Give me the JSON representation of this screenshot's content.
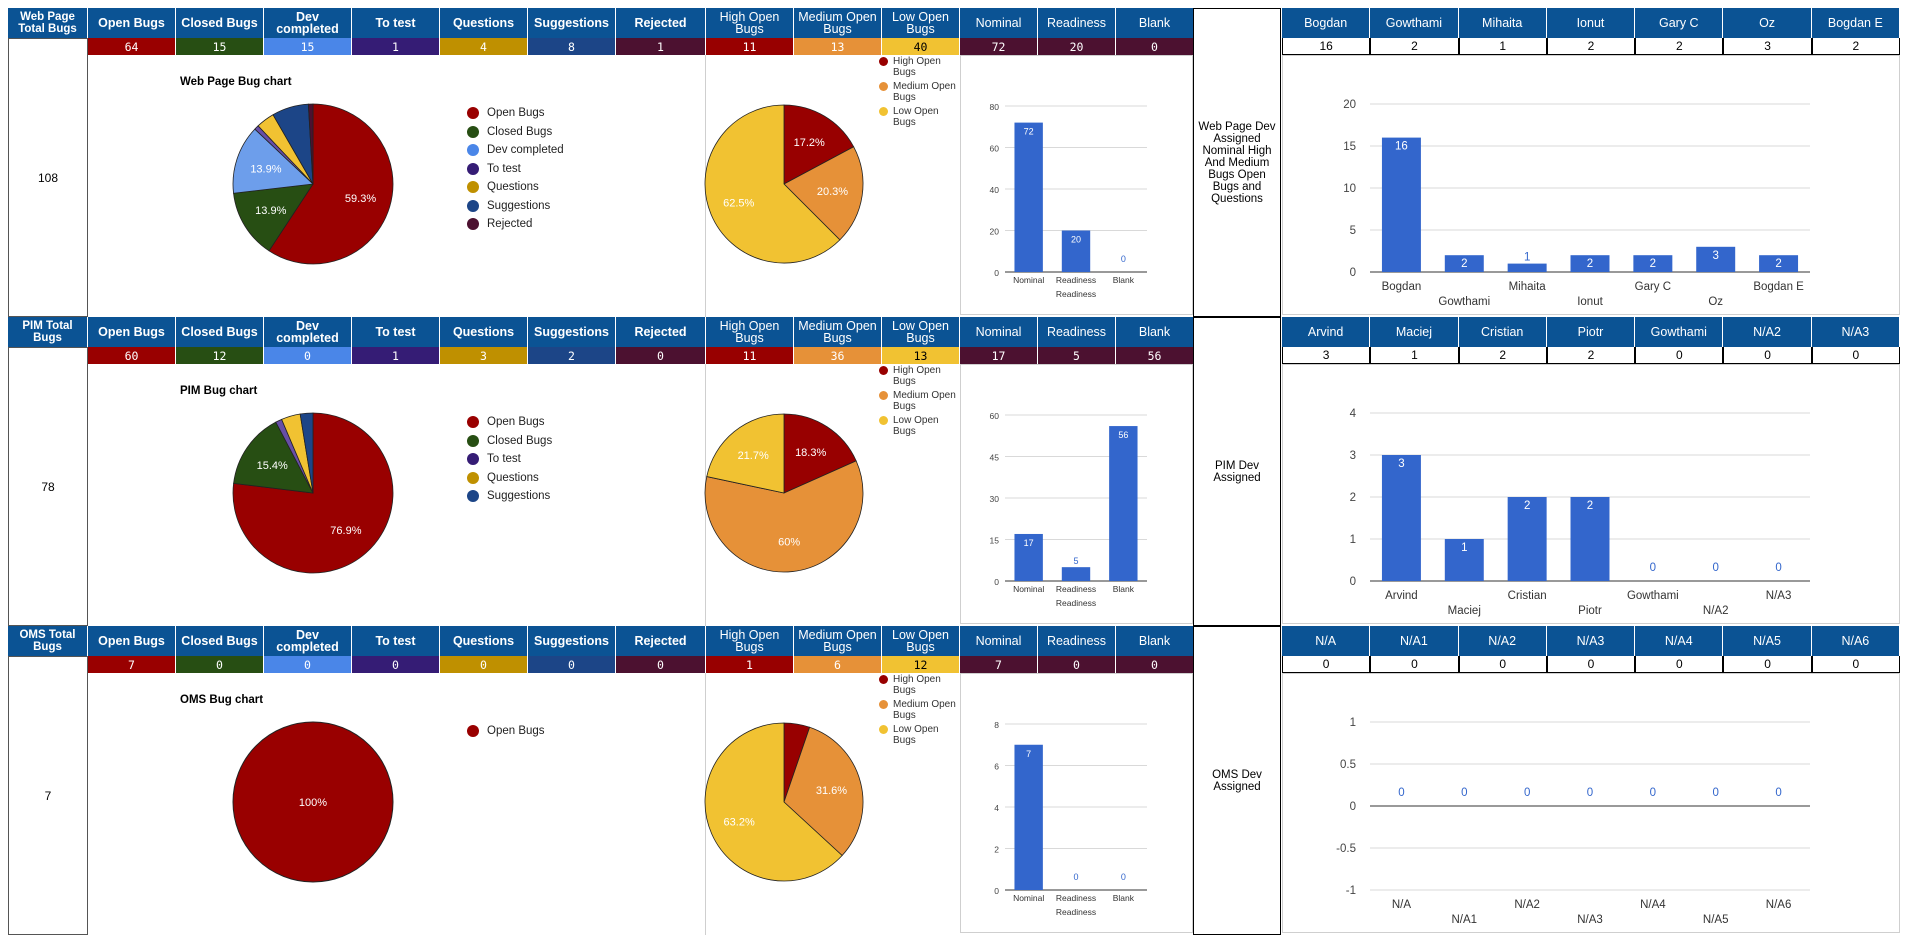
{
  "colors": {
    "header_bg": "#0b5394",
    "open": "#990000",
    "closed": "#274e13",
    "dev": "#4a86e8",
    "totest": "#351c75",
    "questions": "#bf9000",
    "suggestions": "#1c4587",
    "rejected": "#4c1130",
    "high": "#980000",
    "medium": "#e69138",
    "low": "#f1c232",
    "bar": "#3366cc"
  },
  "columns": [
    "Open Bugs",
    "Closed Bugs",
    "Dev completed",
    "To test",
    "Questions",
    "Suggestions",
    "Rejected",
    "High Open Bugs",
    "Medium Open Bugs",
    "Low Open Bugs",
    "Nominal",
    "Readiness",
    "Blank"
  ],
  "sections": [
    {
      "title": "Web Page Total Bugs",
      "total": "108",
      "values": [
        "64",
        "15",
        "15",
        "1",
        "4",
        "8",
        "1",
        "11",
        "13",
        "40",
        "72",
        "20",
        "0"
      ],
      "pie_title": "Web Page Bug chart",
      "pie_legend": [
        "Open Bugs",
        "Closed Bugs",
        "Dev completed",
        "To test",
        "Questions",
        "Suggestions",
        "Rejected"
      ],
      "pie_labels": [
        "59.3%",
        "13.9%",
        "13.9%"
      ],
      "sev_labels": [
        "17.2%",
        "20.3%",
        "62.5%"
      ],
      "sev_legend": [
        "High Open Bugs",
        "Medium Open Bugs",
        "Low Open Bugs"
      ],
      "dev_label": "Web Page Dev Assigned Nominal High And Medium Bugs Open Bugs and Questions",
      "devs": [
        "Bogdan",
        "Gowthami",
        "Mihaita",
        "Ionut",
        "Gary C",
        "Oz",
        "Bogdan E"
      ],
      "dev_values": [
        "16",
        "2",
        "1",
        "2",
        "2",
        "3",
        "2"
      ]
    },
    {
      "title": "PIM Total Bugs",
      "total": "78",
      "values": [
        "60",
        "12",
        "0",
        "1",
        "3",
        "2",
        "0",
        "11",
        "36",
        "13",
        "17",
        "5",
        "56"
      ],
      "pie_title": "PIM Bug chart",
      "pie_legend": [
        "Open Bugs",
        "Closed Bugs",
        "To test",
        "Questions",
        "Suggestions"
      ],
      "pie_labels": [
        "76.9%",
        "15.4%"
      ],
      "sev_labels": [
        "18.3%",
        "60%",
        "21.7%"
      ],
      "sev_legend": [
        "High Open Bugs",
        "Medium Open Bugs",
        "Low Open Bugs"
      ],
      "dev_label": "PIM Dev Assigned",
      "devs": [
        "Arvind",
        "Maciej",
        "Cristian",
        "Piotr",
        "Gowthami",
        "N/A2",
        "N/A3"
      ],
      "dev_values": [
        "3",
        "1",
        "2",
        "2",
        "0",
        "0",
        "0"
      ]
    },
    {
      "title": "OMS Total Bugs",
      "total": "7",
      "values": [
        "7",
        "0",
        "0",
        "0",
        "0",
        "0",
        "0",
        "1",
        "6",
        "12",
        "7",
        "0",
        "0"
      ],
      "pie_title": "OMS Bug chart",
      "pie_legend": [
        "Open Bugs"
      ],
      "pie_labels": [
        "100%"
      ],
      "sev_labels": [
        "31.6%",
        "63.2%"
      ],
      "sev_legend": [
        "High Open Bugs",
        "Medium Open Bugs",
        "Low Open Bugs"
      ],
      "dev_label": "OMS Dev Assigned",
      "devs": [
        "N/A",
        "N/A1",
        "N/A2",
        "N/A3",
        "N/A4",
        "N/A5",
        "N/A6"
      ],
      "dev_values": [
        "0",
        "0",
        "0",
        "0",
        "0",
        "0",
        "0"
      ]
    }
  ],
  "chart_data": [
    {
      "type": "pie",
      "title": "Web Page Bug chart",
      "categories": [
        "Open Bugs",
        "Closed Bugs",
        "Dev completed",
        "To test",
        "Questions",
        "Suggestions",
        "Rejected"
      ],
      "values": [
        64,
        15,
        15,
        1,
        4,
        8,
        1
      ]
    },
    {
      "type": "pie",
      "title": "",
      "categories": [
        "High Open Bugs",
        "Medium Open Bugs",
        "Low Open Bugs"
      ],
      "values": [
        11,
        13,
        40
      ]
    },
    {
      "type": "bar",
      "title": "",
      "categories": [
        "Nominal",
        "Readiness",
        "Blank"
      ],
      "values": [
        72,
        20,
        0
      ],
      "xlabel": "Readiness",
      "ylim": [
        0,
        80
      ],
      "ticks": [
        0,
        20,
        40,
        60,
        80
      ]
    },
    {
      "type": "bar",
      "title": "",
      "categories": [
        "Bogdan",
        "Gowthami",
        "Mihaita",
        "Ionut",
        "Gary C",
        "Oz",
        "Bogdan E"
      ],
      "values": [
        16,
        2,
        1,
        2,
        2,
        3,
        2
      ],
      "ylim": [
        0,
        20
      ],
      "ticks": [
        0,
        5,
        10,
        15,
        20
      ]
    },
    {
      "type": "pie",
      "title": "PIM Bug chart",
      "categories": [
        "Open Bugs",
        "Closed Bugs",
        "To test",
        "Questions",
        "Suggestions"
      ],
      "values": [
        60,
        12,
        1,
        3,
        2
      ]
    },
    {
      "type": "pie",
      "title": "",
      "categories": [
        "High Open Bugs",
        "Medium Open Bugs",
        "Low Open Bugs"
      ],
      "values": [
        11,
        36,
        13
      ]
    },
    {
      "type": "bar",
      "title": "",
      "categories": [
        "Nominal",
        "Readiness",
        "Blank"
      ],
      "values": [
        17,
        5,
        56
      ],
      "xlabel": "Readiness",
      "ylim": [
        0,
        60
      ],
      "ticks": [
        0,
        15,
        30,
        45,
        60
      ]
    },
    {
      "type": "bar",
      "title": "",
      "categories": [
        "Arvind",
        "Maciej",
        "Cristian",
        "Piotr",
        "Gowthami",
        "N/A2",
        "N/A3"
      ],
      "values": [
        3,
        1,
        2,
        2,
        0,
        0,
        0
      ],
      "ylim": [
        0,
        4
      ],
      "ticks": [
        0,
        1,
        2,
        3,
        4
      ]
    },
    {
      "type": "pie",
      "title": "OMS Bug chart",
      "categories": [
        "Open Bugs"
      ],
      "values": [
        7
      ]
    },
    {
      "type": "pie",
      "title": "",
      "categories": [
        "High Open Bugs",
        "Medium Open Bugs",
        "Low Open Bugs"
      ],
      "values": [
        1,
        6,
        12
      ]
    },
    {
      "type": "bar",
      "title": "",
      "categories": [
        "Nominal",
        "Readiness",
        "Blank"
      ],
      "values": [
        7,
        0,
        0
      ],
      "xlabel": "Readiness",
      "ylim": [
        0,
        8
      ],
      "ticks": [
        0,
        2,
        4,
        6,
        8
      ]
    },
    {
      "type": "bar",
      "title": "",
      "categories": [
        "N/A",
        "N/A1",
        "N/A2",
        "N/A3",
        "N/A4",
        "N/A5",
        "N/A6"
      ],
      "values": [
        0,
        0,
        0,
        0,
        0,
        0,
        0
      ],
      "ylim": [
        -1,
        1
      ],
      "ticks": [
        -1,
        -0.5,
        0,
        0.5,
        1
      ]
    }
  ]
}
